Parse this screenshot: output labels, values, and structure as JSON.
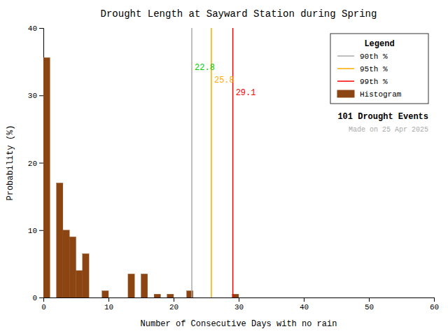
{
  "chart_data": {
    "type": "histogram",
    "title": "Drought Length at Sayward Station during Spring",
    "x_label": "Number of Consecutive Days with no rain",
    "y_label": "Probability (%)",
    "xlim": [
      0,
      60
    ],
    "ylim": [
      0,
      40
    ],
    "xticks": [
      0,
      10,
      20,
      30,
      40,
      50,
      60
    ],
    "yticks": [
      0,
      10,
      20,
      30,
      40
    ],
    "bins": [
      0,
      1,
      2,
      3,
      4,
      5,
      6,
      7,
      8,
      9,
      10,
      11,
      12,
      13,
      14,
      15,
      16,
      17,
      18,
      19,
      20,
      21,
      22,
      23,
      24,
      25,
      26,
      27,
      28,
      29,
      30,
      31,
      32,
      33,
      34,
      35,
      36,
      37,
      38,
      39,
      40,
      41,
      42,
      43,
      44,
      45,
      46,
      47,
      48,
      49,
      50,
      51,
      52,
      53,
      54,
      55,
      56,
      57,
      58,
      59,
      60
    ],
    "legend": "upper right",
    "legend_title": "Legend",
    "series": [
      {
        "name": "90th %",
        "type": "vline",
        "color": "#aaaaaa",
        "values": [
          22.8
        ],
        "data_labels": true,
        "label_color": "#00cc00"
      },
      {
        "name": "95th %",
        "type": "vline",
        "color": "#ffaa00",
        "values": [
          25.8
        ],
        "data_labels": true,
        "label_color": "#ffaa00"
      },
      {
        "name": "99th %",
        "type": "vline",
        "color": "#ff0000",
        "values": [
          29.1
        ],
        "data_labels": true,
        "label_color": "#ff0000"
      },
      {
        "name": "Histogram",
        "type": "bar",
        "color": "#8B4513",
        "values": [
          35.6,
          0,
          17.0,
          10.0,
          9.0,
          4.0,
          6.5,
          0,
          0,
          1.0,
          0,
          0,
          0,
          3.5,
          0,
          3.5,
          0,
          0.5,
          0,
          0.5,
          0,
          0,
          1.0,
          0,
          0,
          0,
          0,
          0,
          0,
          0.5,
          0,
          0,
          0,
          0,
          0,
          0,
          0,
          0,
          0,
          0,
          0,
          0,
          0,
          0,
          0,
          0,
          0,
          0,
          0,
          0,
          0,
          0,
          0,
          0,
          0,
          0,
          0,
          0,
          0,
          0
        ]
      }
    ],
    "annotations": [
      {
        "text": "101 Drought Events",
        "color": "#000000"
      },
      {
        "text": "Made on 25 Apr 2025",
        "color": "#aaaaaa"
      }
    ]
  }
}
